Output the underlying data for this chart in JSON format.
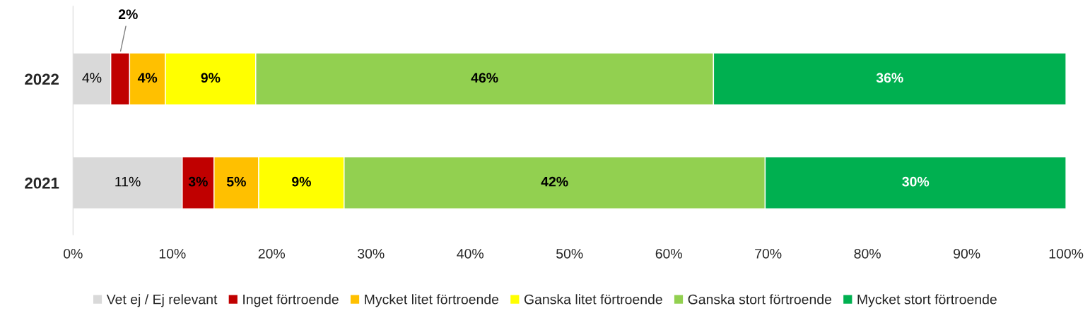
{
  "chart_data": {
    "type": "bar",
    "orientation": "horizontal",
    "stacked": true,
    "categories": [
      "2022",
      "2021"
    ],
    "series": [
      {
        "name": "Vet ej / Ej relevant",
        "color": "#d9d9d9",
        "values": [
          3.8,
          11.0
        ],
        "value_labels": [
          "4%",
          "11%"
        ]
      },
      {
        "name": "Inget förtroende",
        "color": "#c00000",
        "values": [
          1.9,
          3.2
        ],
        "value_labels": [
          "2%",
          "3%"
        ]
      },
      {
        "name": "Mycket litet förtroende",
        "color": "#ffc000",
        "values": [
          3.6,
          4.5
        ],
        "value_labels": [
          "4%",
          "5%"
        ]
      },
      {
        "name": "Ganska litet förtroende",
        "color": "#ffff00",
        "values": [
          9.1,
          8.6
        ],
        "value_labels": [
          "9%",
          "9%"
        ]
      },
      {
        "name": "Ganska stort förtroende",
        "color": "#92d050",
        "values": [
          46.1,
          42.4
        ],
        "value_labels": [
          "46%",
          "42%"
        ]
      },
      {
        "name": "Mycket stort förtroende",
        "color": "#00b050",
        "values": [
          35.5,
          30.3
        ],
        "value_labels": [
          "36%",
          "30%"
        ]
      }
    ],
    "xlim": [
      0,
      100
    ],
    "xticks": [
      {
        "value": 0,
        "label": "0%"
      },
      {
        "value": 10,
        "label": "10%"
      },
      {
        "value": 20,
        "label": "20%"
      },
      {
        "value": 30,
        "label": "30%"
      },
      {
        "value": 40,
        "label": "40%"
      },
      {
        "value": 50,
        "label": "50%"
      },
      {
        "value": 60,
        "label": "60%"
      },
      {
        "value": 70,
        "label": "70%"
      },
      {
        "value": 80,
        "label": "80%"
      },
      {
        "value": 90,
        "label": "90%"
      },
      {
        "value": 100,
        "label": "100%"
      }
    ],
    "grid": false,
    "legend": "bottom"
  }
}
